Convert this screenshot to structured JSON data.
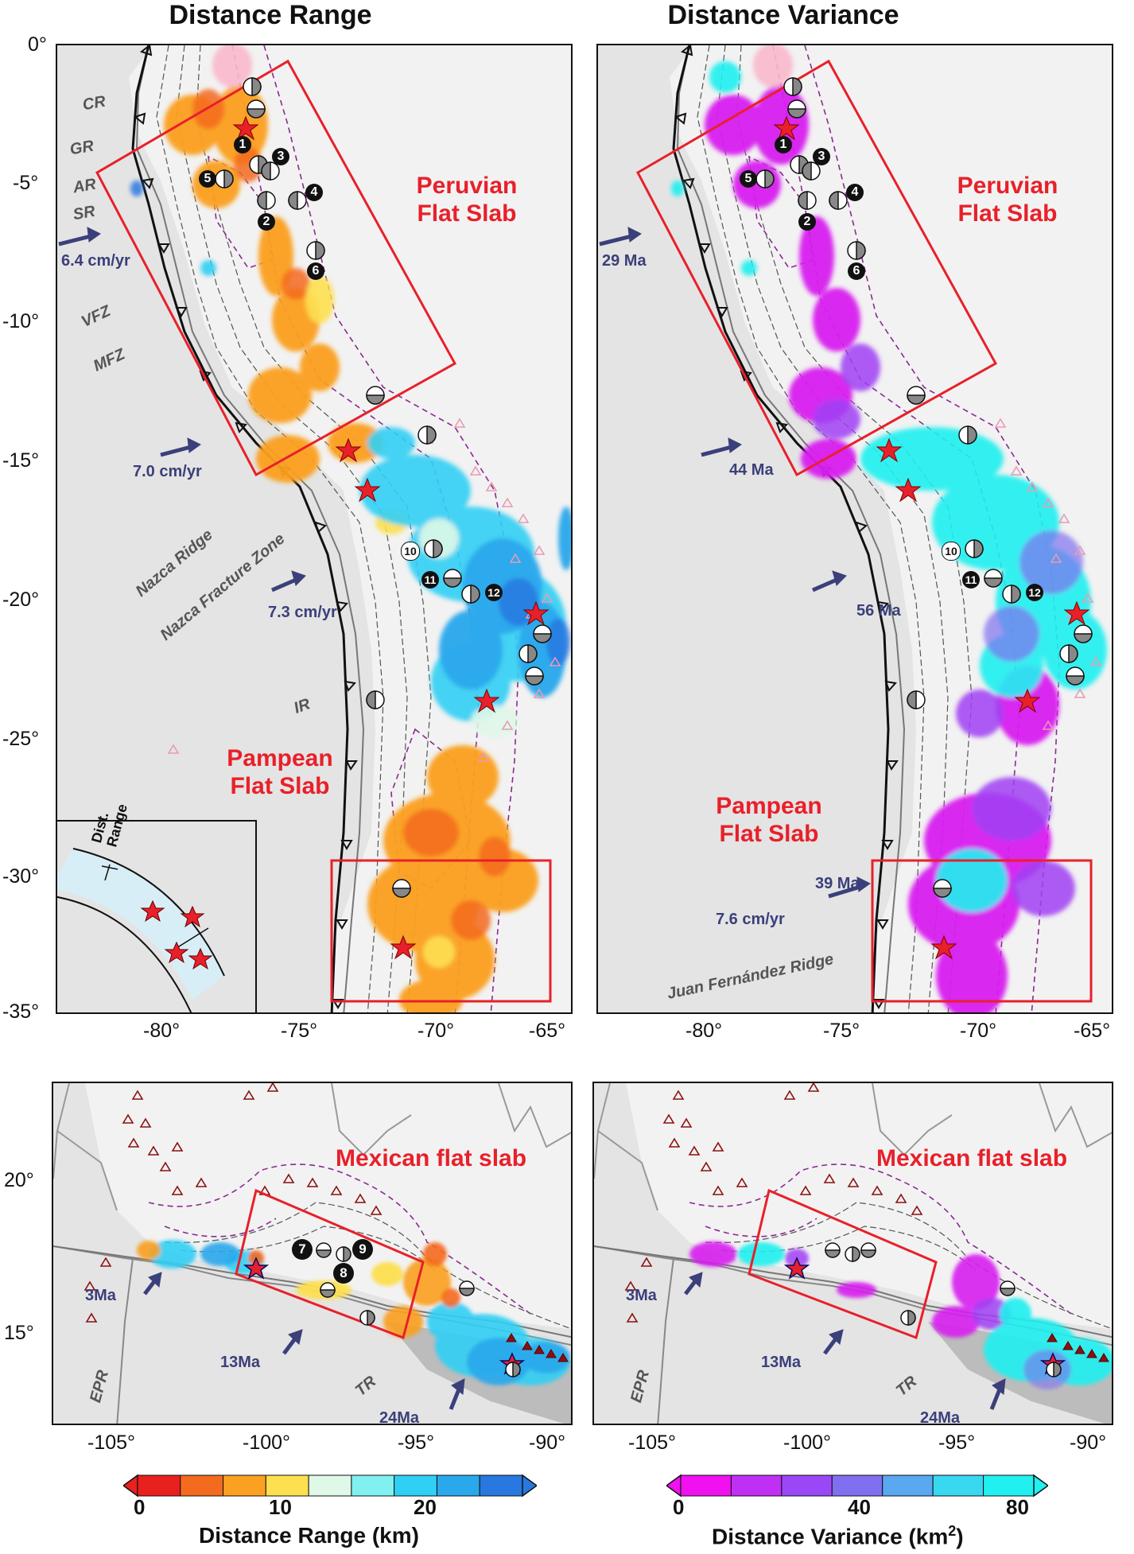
{
  "titles": {
    "left": "Distance Range",
    "right": "Distance Variance"
  },
  "sa_lat_ticks": [
    "0°",
    "-5°",
    "-10°",
    "-15°",
    "-20°",
    "-25°",
    "-30°",
    "-35°"
  ],
  "sa_lon_ticks": [
    "-80°",
    "-75°",
    "-70°",
    "-65°"
  ],
  "mx_lat_ticks": [
    "20°",
    "15°"
  ],
  "mx_lon_ticks": [
    "-105°",
    "-100°",
    "-95°",
    "-90°"
  ],
  "regions": {
    "peru": "Peruvian\nFlat Slab",
    "pampean": "Pampean\nFlat Slab",
    "mexico": "Mexican flat slab"
  },
  "features_left": {
    "cr": "CR",
    "gr": "GR",
    "ar": "AR",
    "sr": "SR",
    "vfz": "VFZ",
    "mfz": "MFZ",
    "nazca_ridge": "Nazca Ridge",
    "nazca_fz": "Nazca Fracture Zone",
    "ir": "IR"
  },
  "features_right": {
    "jfr": "Juan Fernández Ridge"
  },
  "features_mx": {
    "epr": "EPR",
    "tr": "TR"
  },
  "rates_left": {
    "r1": "6.4 cm/yr",
    "r2": "7.0 cm/yr",
    "r3": "7.3 cm/yr",
    "r4": "7.6 cm/yr"
  },
  "ages_right": {
    "a1": "29 Ma",
    "a2": "44 Ma",
    "a3": "56 Ma",
    "a4": "39 Ma"
  },
  "ages_mx": {
    "a1": "3Ma",
    "a2": "13Ma",
    "a3": "24Ma"
  },
  "inset": {
    "label": "Dist.\nRange"
  },
  "event_numbers": [
    "1",
    "2",
    "3",
    "4",
    "5",
    "6",
    "7",
    "8",
    "9",
    "10",
    "11",
    "12"
  ],
  "colorbar_range": {
    "title": "Distance Range (km)",
    "ticks": [
      "0",
      "10",
      "20"
    ],
    "colors": [
      "#e8201e",
      "#f46a1e",
      "#fba020",
      "#fde050",
      "#dff8e8",
      "#80f0f0",
      "#30d0f4",
      "#2aa8ec",
      "#2878e0"
    ]
  },
  "colorbar_variance": {
    "title": "Distance Variance (km",
    "title_sup": "2",
    "title_end": ")",
    "ticks": [
      "0",
      "40",
      "80"
    ],
    "colors": [
      "#f010f0",
      "#c030f4",
      "#9a48f6",
      "#8070f0",
      "#5aa8f0",
      "#38d8f0",
      "#20f0f0"
    ]
  },
  "colors": {
    "frame_red": "#e8202a",
    "plate_arrow": "#3b3f7a",
    "volcano": "#e99ab4",
    "trench": "#111111"
  }
}
